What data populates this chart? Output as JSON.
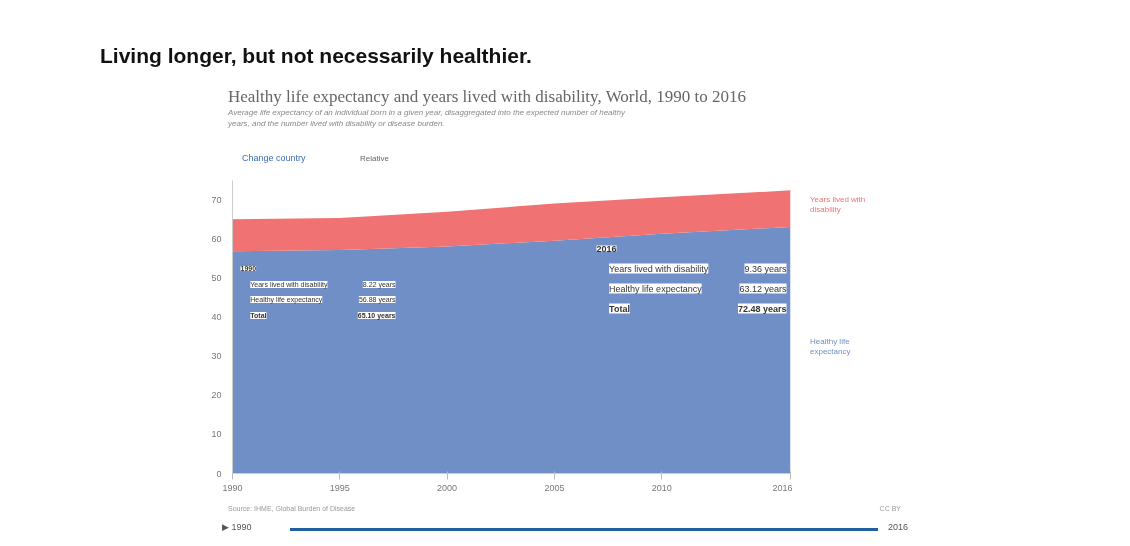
{
  "chart_data": {
    "type": "area",
    "stacked": true,
    "title": "Healthy life expectancy and years lived with disability, World, 1990 to 2016",
    "subtitle": "Average life expectancy of an individual born in a given year, disaggregated into the expected number of healthy years, and the number lived with disability or disease burden.",
    "x": [
      1990,
      1995,
      2000,
      2005,
      2010,
      2016
    ],
    "series": [
      {
        "name": "Healthy life expectancy",
        "color": "#6f8fc6",
        "values": [
          56.88,
          57.2,
          58.1,
          59.6,
          61.4,
          63.12
        ]
      },
      {
        "name": "Years lived with disability",
        "color": "#f07272",
        "values": [
          8.22,
          8.2,
          8.9,
          9.5,
          9.3,
          9.36
        ]
      }
    ],
    "xlim": [
      1990,
      2016
    ],
    "xticks": [
      1990,
      1995,
      2000,
      2005,
      2010,
      2016
    ],
    "ylim": [
      0,
      75
    ],
    "yticks": [
      0,
      10,
      20,
      30,
      40,
      50,
      60,
      70
    ],
    "grid": false,
    "legend": "right",
    "annotations": [
      "Living longer, but not necessarily healthier.",
      "Change country",
      "Relative",
      "1990",
      "Years lived with disability",
      "8.22 years",
      "Healthy life expectancy",
      "56.88 years",
      "Total",
      "65.10 years",
      "2016",
      "Years lived with disability",
      "9.36 years",
      "Healthy life expectancy",
      "63.12 years",
      "Total",
      "72.48 years",
      "Source: IHME, Global Burden of Disease",
      "CC BY",
      "▶ 1990",
      "2016"
    ]
  }
}
